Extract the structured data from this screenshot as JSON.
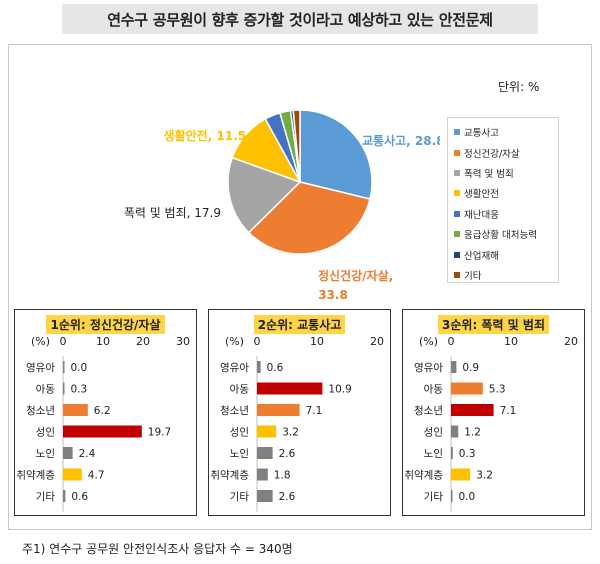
{
  "title": "연수구 공무원이 향후 증가할 것이라고 예상하고 있는 안전문제",
  "unit_label": "단위: %",
  "footnote": "주1) 연수구 공무원 안전인식조사 응답자 수 = 340명",
  "chart_data": [
    {
      "type": "pie",
      "categories": [
        "교통사고",
        "정신건강/자살",
        "폭력 및 범죄",
        "생활안전",
        "재난대응",
        "응급상황 대처능력",
        "산업재해",
        "기타"
      ],
      "values": [
        28.8,
        33.8,
        17.9,
        11.5,
        3.5,
        2.4,
        0.6,
        1.5
      ],
      "colors": [
        "#5b9bd5",
        "#ed7d31",
        "#a5a5a5",
        "#ffc000",
        "#4472c4",
        "#70ad47",
        "#264478",
        "#9e480e"
      ],
      "data_labels": [
        {
          "index": 0,
          "text": "교통사고, 28.8",
          "color": "#5b9bd5"
        },
        {
          "index": 1,
          "text1": "정신건강/자살,",
          "text2": "33.8",
          "color": "#ed7d31"
        },
        {
          "index": 2,
          "text": "폭력 및 범죄, 17.9",
          "color": "#222222"
        },
        {
          "index": 3,
          "text": "생활안전, 11.5",
          "color": "#ffc000"
        }
      ],
      "legend": "right"
    },
    {
      "type": "bar",
      "orientation": "horizontal",
      "title": "1순위: 정신건강/자살",
      "axis_unit": "(%)",
      "categories": [
        "영유아",
        "아동",
        "청소년",
        "성인",
        "노인",
        "취약계층",
        "기타"
      ],
      "values": [
        0.0,
        0.3,
        6.2,
        19.7,
        2.4,
        4.7,
        0.6
      ],
      "value_labels": [
        "0.0",
        "0.3",
        "6.2",
        "19.7",
        "2.4",
        "4.7",
        "0.6"
      ],
      "colors": [
        "#808080",
        "#808080",
        "#ed7d31",
        "#c00000",
        "#808080",
        "#ffc000",
        "#808080"
      ],
      "xlim": [
        0,
        30
      ],
      "ticks": [
        "0",
        "10",
        "20",
        "30"
      ]
    },
    {
      "type": "bar",
      "orientation": "horizontal",
      "title": "2순위: 교통사고",
      "axis_unit": "(%)",
      "categories": [
        "영유아",
        "아동",
        "청소년",
        "성인",
        "노인",
        "취약계층",
        "기타"
      ],
      "values": [
        0.6,
        10.9,
        7.1,
        3.2,
        2.6,
        1.8,
        2.6
      ],
      "value_labels": [
        "0.6",
        "10.9",
        "7.1",
        "3.2",
        "2.6",
        "1.8",
        "2.6"
      ],
      "colors": [
        "#808080",
        "#c00000",
        "#ed7d31",
        "#ffc000",
        "#808080",
        "#808080",
        "#808080"
      ],
      "xlim": [
        0,
        20
      ],
      "ticks": [
        "0",
        "10",
        "20"
      ]
    },
    {
      "type": "bar",
      "orientation": "horizontal",
      "title": "3순위: 폭력 및 범죄",
      "axis_unit": "(%)",
      "categories": [
        "영유아",
        "아동",
        "청소년",
        "성인",
        "노인",
        "취약계층",
        "기타"
      ],
      "values": [
        0.9,
        5.3,
        7.1,
        1.2,
        0.3,
        3.2,
        0.0
      ],
      "value_labels": [
        "0.9",
        "5.3",
        "7.1",
        "1.2",
        "0.3",
        "3.2",
        "0.0"
      ],
      "colors": [
        "#808080",
        "#ed7d31",
        "#c00000",
        "#808080",
        "#808080",
        "#ffc000",
        "#808080"
      ],
      "xlim": [
        0,
        20
      ],
      "ticks": [
        "0",
        "10",
        "20"
      ]
    }
  ]
}
